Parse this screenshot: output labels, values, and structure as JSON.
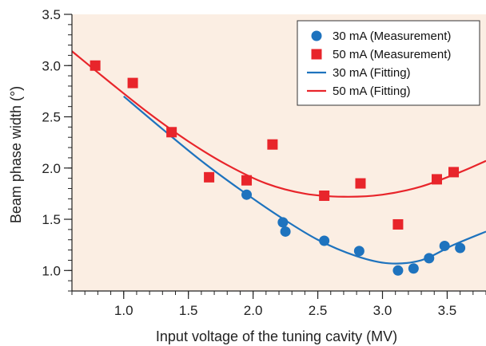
{
  "chart_data": {
    "type": "scatter",
    "title": "",
    "xlabel": "Input voltage of the tuning cavity (MV)",
    "ylabel": "Beam phase width (°)",
    "xlim": [
      0.6,
      3.8
    ],
    "ylim": [
      0.8,
      3.5
    ],
    "xticks": [
      1.0,
      1.5,
      2.0,
      2.5,
      3.0,
      3.5
    ],
    "xtick_labels": [
      "1.0",
      "1.5",
      "2.0",
      "2.5",
      "3.0",
      "3.5"
    ],
    "yticks": [
      1.0,
      1.5,
      2.0,
      2.5,
      3.0,
      3.5
    ],
    "ytick_labels": [
      "1.0",
      "1.5",
      "2.0",
      "2.5",
      "3.0",
      "3.5"
    ],
    "x_minor_step": 0.1,
    "y_minor_step": 0.1,
    "grid": false,
    "legend_position": "top-right",
    "plot_background": "#fbeee3",
    "series": [
      {
        "name": "30 mA (Measurement)",
        "kind": "scatter",
        "marker": "circle",
        "color": "#1e73be",
        "x": [
          1.95,
          2.23,
          2.25,
          2.55,
          2.82,
          3.12,
          3.24,
          3.36,
          3.48,
          3.6
        ],
        "y": [
          1.74,
          1.47,
          1.38,
          1.29,
          1.19,
          1.0,
          1.02,
          1.12,
          1.24,
          1.22
        ]
      },
      {
        "name": "50 mA (Measurement)",
        "kind": "scatter",
        "marker": "square",
        "color": "#e8252b",
        "x": [
          0.78,
          1.07,
          1.37,
          1.66,
          1.95,
          2.15,
          2.55,
          2.83,
          3.12,
          3.42,
          3.55
        ],
        "y": [
          3.0,
          2.83,
          2.35,
          1.91,
          1.88,
          2.23,
          1.73,
          1.85,
          1.45,
          1.89,
          1.96
        ]
      },
      {
        "name": "30 mA (Fitting)",
        "kind": "line",
        "color": "#1e73be",
        "x": [
          1.0,
          1.3,
          1.6,
          1.9,
          2.2,
          2.5,
          2.8,
          3.05,
          3.3,
          3.55,
          3.8
        ],
        "y": [
          2.7,
          2.38,
          2.07,
          1.79,
          1.53,
          1.3,
          1.14,
          1.07,
          1.1,
          1.25,
          1.38
        ]
      },
      {
        "name": "50 mA (Fitting)",
        "kind": "line",
        "color": "#e8252b",
        "x": [
          0.6,
          0.9,
          1.2,
          1.5,
          1.8,
          2.1,
          2.4,
          2.7,
          3.0,
          3.3,
          3.6,
          3.8
        ],
        "y": [
          3.14,
          2.83,
          2.53,
          2.26,
          2.03,
          1.85,
          1.75,
          1.72,
          1.74,
          1.82,
          1.96,
          2.07
        ]
      }
    ]
  }
}
